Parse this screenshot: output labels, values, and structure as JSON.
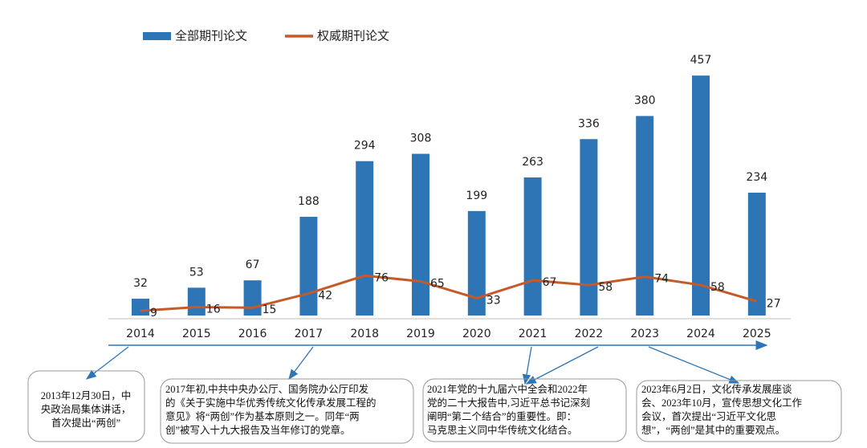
{
  "chart_data": {
    "type": "bar_line",
    "categories": [
      "2014",
      "2015",
      "2016",
      "2017",
      "2018",
      "2019",
      "2020",
      "2021",
      "2022",
      "2023",
      "2024",
      "2025"
    ],
    "series": [
      {
        "name": "全部期刊论文",
        "type": "bar",
        "color": "#2e75b6",
        "values": [
          32,
          53,
          67,
          188,
          294,
          308,
          199,
          263,
          336,
          380,
          457,
          234
        ]
      },
      {
        "name": "权威期刊论文",
        "type": "line",
        "color": "#c55a28",
        "values": [
          9,
          16,
          15,
          42,
          76,
          65,
          33,
          67,
          58,
          74,
          58,
          27
        ]
      }
    ],
    "ylim": [
      0,
      500
    ],
    "legend": "top-left",
    "annotations": [
      {
        "lines": [
          "2013年12月30日，中",
          "央政治局集体讲话，",
          "首次提出“两创”"
        ]
      },
      {
        "lines": [
          "2017年初,中共中央办公厅、国务院办公厅印发",
          "的《关于实施中华优秀传统文化传承发展工程的",
          "意见》将“两创”作为基本原则之一。同年“两",
          "创”被写入十九大报告及当年修订的党章。"
        ]
      },
      {
        "lines": [
          "2021年党的十九届六中全会和2022年",
          "党的二十大报告中,习近平总书记深刻",
          "阐明“第二个结合”的重要性。即：",
          "马克思主义同中华传统文化结合。"
        ]
      },
      {
        "lines": [
          "2023年6月2日，文化传承发展座谈",
          "会、2023年10月，宣传思想文化工作",
          "会议，首次提出“习近平文化思",
          "想”，“两创”是其中的重要观点。"
        ]
      }
    ]
  }
}
